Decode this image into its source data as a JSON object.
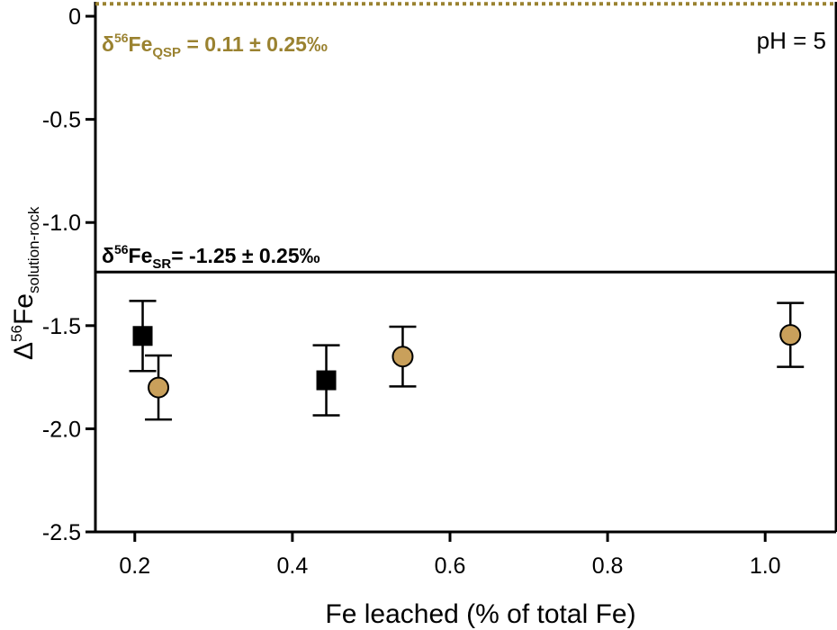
{
  "chart_data": {
    "type": "scatter",
    "xlabel": "Fe leached (% of total Fe)",
    "ylabel": {
      "delta": "Δ",
      "mass": "56",
      "element": "Fe",
      "subscript": "solution-rock"
    },
    "xlim": [
      0.15,
      1.09
    ],
    "ylim": [
      -2.5,
      0.07
    ],
    "x_ticks": [
      {
        "value": 0.2,
        "label": "0.2"
      },
      {
        "value": 0.4,
        "label": "0.4"
      },
      {
        "value": 0.6,
        "label": "0.6"
      },
      {
        "value": 0.8,
        "label": "0.8"
      },
      {
        "value": 1.0,
        "label": "1.0"
      }
    ],
    "y_ticks": [
      {
        "value": 0,
        "label": "0"
      },
      {
        "value": -0.5,
        "label": "-0.5"
      },
      {
        "value": -1.0,
        "label": "-1.0"
      },
      {
        "value": -1.5,
        "label": "-1.5"
      },
      {
        "value": -2.0,
        "label": "-2.0"
      },
      {
        "value": -2.5,
        "label": "-2.5"
      }
    ],
    "grid": false,
    "series": [
      {
        "marker": "square",
        "color": "#000000",
        "points": [
          {
            "x": 0.21,
            "y": -1.55,
            "err": 0.17
          },
          {
            "x": 0.443,
            "y": -1.765,
            "err": 0.17
          }
        ]
      },
      {
        "marker": "circle",
        "color": "#C9A05B",
        "points": [
          {
            "x": 0.23,
            "y": -1.8,
            "err": 0.155
          },
          {
            "x": 0.54,
            "y": -1.65,
            "err": 0.145
          },
          {
            "x": 1.032,
            "y": -1.545,
            "err": 0.155
          }
        ]
      }
    ],
    "reference_lines": [
      {
        "y": 0.06,
        "style": "dotted",
        "color": "#9A8230",
        "label": {
          "delta": "δ",
          "mass": "56",
          "element": "Fe",
          "subscript": "QSP",
          "rest": " = 0.11 ± 0.25‰"
        }
      },
      {
        "y": -1.24,
        "style": "solid",
        "color": "#000000",
        "label": {
          "delta": "δ",
          "mass": "56",
          "element": "Fe",
          "subscript": "SR",
          "rest": "= -1.25 ± 0.25‰"
        }
      }
    ],
    "annotation": "pH = 5"
  }
}
